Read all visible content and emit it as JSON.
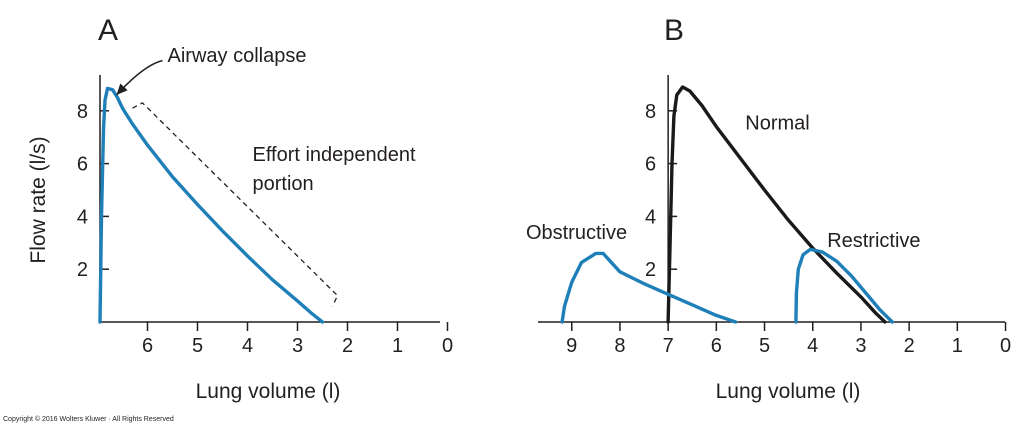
{
  "copyright": "Copyright © 2016 Wolters Kluwer · All Rights Reserved",
  "colors": {
    "blue": "#1f7fb8",
    "black": "#1a1a1a",
    "axis": "#231f20"
  },
  "chart_data": [
    {
      "type": "line",
      "panel": "A",
      "xlabel": "Lung volume (l)",
      "ylabel": "Flow rate (l/s)",
      "x_ticks": [
        6,
        5,
        4,
        3,
        2,
        1,
        0
      ],
      "y_ticks": [
        2,
        4,
        6,
        8
      ],
      "xlim": [
        6.95,
        0
      ],
      "ylim": [
        0,
        9.2
      ],
      "x_reversed": true,
      "series": [
        {
          "color": "#1f7fb8",
          "x": [
            6.95,
            6.92,
            6.88,
            6.85,
            6.8,
            6.7,
            6.6,
            6.5,
            6.3,
            6.0,
            5.5,
            5.0,
            4.5,
            4.0,
            3.5,
            3.0,
            2.7,
            2.5
          ],
          "y": [
            0,
            4.0,
            7.3,
            8.4,
            8.85,
            8.8,
            8.5,
            8.1,
            7.5,
            6.7,
            5.5,
            4.45,
            3.45,
            2.5,
            1.6,
            0.8,
            0.3,
            0
          ]
        }
      ],
      "bracket": {
        "x": [
          6.3,
          6.1,
          2.2,
          2.3
        ],
        "y": [
          8.1,
          8.3,
          1.0,
          0.6
        ]
      },
      "annotations": [
        {
          "text": "Airway collapse",
          "x": 5.6,
          "y": 9.85
        },
        {
          "text": "Effort independent",
          "x": 3.9,
          "y": 6.1
        },
        {
          "text": "portion",
          "x": 3.9,
          "y": 5.0
        }
      ],
      "arrow": {
        "from": [
          5.7,
          9.9
        ],
        "to": [
          6.62,
          8.6
        ]
      }
    },
    {
      "type": "line",
      "panel": "B",
      "xlabel": "Lung volume (l)",
      "x_ticks": [
        9,
        8,
        7,
        6,
        5,
        4,
        3,
        2,
        1,
        0
      ],
      "y_ticks": [
        2,
        4,
        6,
        8
      ],
      "xlim": [
        9.7,
        0
      ],
      "ylim": [
        0,
        9.2
      ],
      "x_reversed": true,
      "series": [
        {
          "name": "Normal",
          "color": "#1a1a1a",
          "x": [
            7.0,
            6.96,
            6.92,
            6.88,
            6.82,
            6.7,
            6.55,
            6.3,
            6.0,
            5.5,
            5.0,
            4.5,
            4.0,
            3.5,
            3.0,
            2.7,
            2.5
          ],
          "y": [
            0,
            3.0,
            6.0,
            7.8,
            8.6,
            8.9,
            8.75,
            8.2,
            7.4,
            6.2,
            5.0,
            3.85,
            2.8,
            1.85,
            0.95,
            0.35,
            0
          ]
        },
        {
          "name": "Obstructive",
          "color": "#1f7fb8",
          "x": [
            9.2,
            9.15,
            9.0,
            8.8,
            8.5,
            8.35,
            8.2,
            8.0,
            7.5,
            7.0,
            6.5,
            6.0,
            5.6
          ],
          "y": [
            0,
            0.6,
            1.5,
            2.25,
            2.6,
            2.6,
            2.3,
            1.9,
            1.45,
            1.05,
            0.65,
            0.25,
            0
          ]
        },
        {
          "name": "Restrictive",
          "color": "#1f7fb8",
          "x": [
            4.35,
            4.34,
            4.3,
            4.2,
            4.05,
            3.8,
            3.5,
            3.2,
            2.9,
            2.6,
            2.35
          ],
          "y": [
            0,
            1.1,
            2.0,
            2.55,
            2.75,
            2.65,
            2.3,
            1.75,
            1.1,
            0.45,
            0
          ]
        }
      ],
      "annotations": [
        {
          "text": "Normal",
          "x": 5.4,
          "y": 7.3
        },
        {
          "text": "Obstructive",
          "x": 9.95,
          "y": 3.15
        },
        {
          "text": "Restrictive",
          "x": 3.7,
          "y": 2.85
        }
      ]
    }
  ]
}
